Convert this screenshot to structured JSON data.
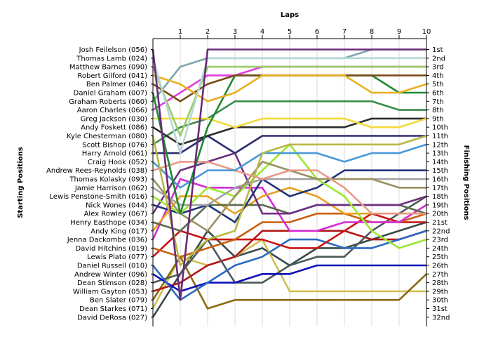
{
  "chart_data": {
    "type": "line",
    "title": "",
    "xlabel": "Laps",
    "ylabel_left": "Starting Positions",
    "ylabel_right": "Finishing Positions",
    "grid": true,
    "legend": "none",
    "x_ticks": [
      "1",
      "2",
      "3",
      "4",
      "5",
      "6",
      "7",
      "8",
      "9",
      "10"
    ],
    "xlim": [
      0,
      10
    ],
    "ylim": [
      1,
      32
    ],
    "finishing_positions": [
      "1st",
      "2nd",
      "3rd",
      "4th",
      "5th",
      "6th",
      "7th",
      "8th",
      "9th",
      "10th",
      "11th",
      "12th",
      "13th",
      "14th",
      "15th",
      "16th",
      "17th",
      "18th",
      "19th",
      "20th",
      "21st",
      "22nd",
      "23rd",
      "24th",
      "25th",
      "26th",
      "27th",
      "28th",
      "29th",
      "30th",
      "31st",
      "32nd"
    ],
    "series": [
      {
        "name": "Josh Feilelson (056)",
        "color": "#6a2a78",
        "values": [
          1,
          30,
          1,
          1,
          1,
          1,
          1,
          1,
          1,
          1,
          1
        ]
      },
      {
        "name": "Thomas Lamb (024)",
        "color": "#b6d7d8",
        "values": [
          2,
          13,
          2,
          2,
          2,
          2,
          2,
          2,
          2,
          2,
          2
        ]
      },
      {
        "name": "Matthew Barnes (090)",
        "color": "#9acc66",
        "values": [
          3,
          11,
          3,
          3,
          3,
          3,
          3,
          3,
          3,
          3,
          3
        ]
      },
      {
        "name": "Robert Gilford (041)",
        "color": "#e8b020",
        "values": [
          4,
          5,
          7,
          6,
          4,
          4,
          4,
          4,
          6,
          6,
          5
        ]
      },
      {
        "name": "Ben Palmer (046)",
        "color": "#7a4a18",
        "values": [
          5,
          7,
          5,
          4,
          4,
          4,
          4,
          4,
          4,
          4,
          4
        ]
      },
      {
        "name": "Daniel Graham (007)",
        "color": "#1f8a30",
        "values": [
          6,
          20,
          10,
          4,
          4,
          4,
          4,
          4,
          4,
          6,
          6
        ]
      },
      {
        "name": "Graham Roberts (060)",
        "color": "#7ea6ac",
        "values": [
          7,
          3,
          2,
          2,
          2,
          2,
          2,
          2,
          1,
          1,
          1
        ]
      },
      {
        "name": "Aaron Charles (066)",
        "color": "#e23ce0",
        "values": [
          8,
          6,
          4,
          4,
          3,
          3,
          3,
          3,
          3,
          3,
          3
        ]
      },
      {
        "name": "Greg Jackson (030)",
        "color": "#f3d93c",
        "values": [
          9,
          9,
          9,
          10,
          9,
          9,
          9,
          9,
          10,
          10,
          9
        ]
      },
      {
        "name": "Andy Foskett (086)",
        "color": "#2c2c2c",
        "values": [
          10,
          12,
          11,
          10,
          10,
          10,
          10,
          10,
          9,
          9,
          9
        ]
      },
      {
        "name": "Kyle Chesterman (080)",
        "color": "#b8b844",
        "values": [
          11,
          26,
          23,
          22,
          13,
          12,
          12,
          12,
          12,
          12,
          11
        ]
      },
      {
        "name": "Scott Bishop (076)",
        "color": "#3a8c48",
        "values": [
          12,
          10,
          9,
          7,
          7,
          7,
          7,
          7,
          7,
          8,
          8
        ]
      },
      {
        "name": "Harry Arnold (061)",
        "color": "#2d2d70",
        "values": [
          13,
          13,
          11,
          13,
          11,
          11,
          11,
          11,
          11,
          11,
          11
        ]
      },
      {
        "name": "Craig Hook (052)",
        "color": "#4a98d8",
        "values": [
          14,
          17,
          15,
          15,
          13,
          13,
          13,
          14,
          13,
          13,
          12
        ]
      },
      {
        "name": "Andrew Rees-Reynolds (038)",
        "color": "#e89a88",
        "values": [
          15,
          14,
          14,
          15,
          16,
          15,
          15,
          17,
          20,
          20,
          20
        ]
      },
      {
        "name": "Thomas Kolasky (093)",
        "color": "#9a9060",
        "values": [
          16,
          20,
          22,
          18,
          14,
          15,
          16,
          16,
          16,
          17,
          17
        ]
      },
      {
        "name": "Jamie Harrison (062)",
        "color": "#a0a0a0",
        "values": [
          17,
          19,
          19,
          17,
          16,
          16,
          16,
          16,
          16,
          16,
          16
        ]
      },
      {
        "name": "Lewis Penstone-Smith (016)",
        "color": "#9ae830",
        "values": [
          18,
          20,
          17,
          18,
          15,
          12,
          16,
          18,
          22,
          24,
          23
        ]
      },
      {
        "name": "Nick Wones (044)",
        "color": "#223377",
        "values": [
          19,
          20,
          19,
          21,
          16,
          18,
          17,
          15,
          15,
          15,
          15
        ]
      },
      {
        "name": "Alex Rowley (067)",
        "color": "#6f2f80",
        "values": [
          20,
          15,
          14,
          13,
          20,
          20,
          19,
          19,
          19,
          19,
          18
        ]
      },
      {
        "name": "Henry Easthope (034)",
        "color": "#5a6a4a",
        "values": [
          21,
          22,
          19,
          19,
          19,
          20,
          19,
          19,
          19,
          19,
          20
        ]
      },
      {
        "name": "Andy King (017)",
        "color": "#e8a020",
        "values": [
          22,
          18,
          18,
          20,
          18,
          17,
          18,
          20,
          20,
          20,
          20
        ]
      },
      {
        "name": "Jenna Dackombe (036)",
        "color": "#d82ad8",
        "values": [
          23,
          16,
          17,
          17,
          17,
          22,
          22,
          21,
          21,
          21,
          19
        ]
      },
      {
        "name": "David Hitchins (019)",
        "color": "#c86010",
        "values": [
          24,
          25,
          24,
          23,
          21,
          21,
          20,
          20,
          21,
          21,
          20
        ]
      },
      {
        "name": "Lewis Plato (077)",
        "color": "#c81414",
        "values": [
          25,
          22,
          23,
          23,
          23,
          24,
          24,
          22,
          20,
          21,
          21
        ]
      },
      {
        "name": "Daniel Russell (010)",
        "color": "#2a6ac0",
        "values": [
          26,
          30,
          28,
          26,
          25,
          23,
          23,
          24,
          24,
          23,
          22
        ]
      },
      {
        "name": "Andrew Winter (096)",
        "color": "#1010b8",
        "values": [
          27,
          29,
          28,
          28,
          27,
          27,
          26,
          26,
          26,
          26,
          26
        ]
      },
      {
        "name": "Dean Stimson (028)",
        "color": "#4a5a5a",
        "values": [
          28,
          27,
          23,
          28,
          28,
          26,
          25,
          25,
          22,
          20,
          18
        ]
      },
      {
        "name": "William Gayton (053)",
        "color": "#b01818",
        "values": [
          29,
          28,
          26,
          25,
          22,
          22,
          22,
          22,
          23,
          23,
          22
        ]
      },
      {
        "name": "Ben Slater (079)",
        "color": "#8a6a10",
        "values": [
          30,
          25,
          31,
          30,
          30,
          30,
          30,
          30,
          30,
          30,
          27
        ]
      },
      {
        "name": "Dean Starkes (071)",
        "color": "#d0c050",
        "values": [
          31,
          25,
          26,
          25,
          23,
          29,
          29,
          29,
          29,
          29,
          29
        ]
      },
      {
        "name": "David DeRosa (027)",
        "color": "#3a4a4a",
        "values": [
          32,
          27,
          22,
          25,
          24,
          26,
          24,
          24,
          23,
          22,
          21
        ]
      }
    ]
  }
}
